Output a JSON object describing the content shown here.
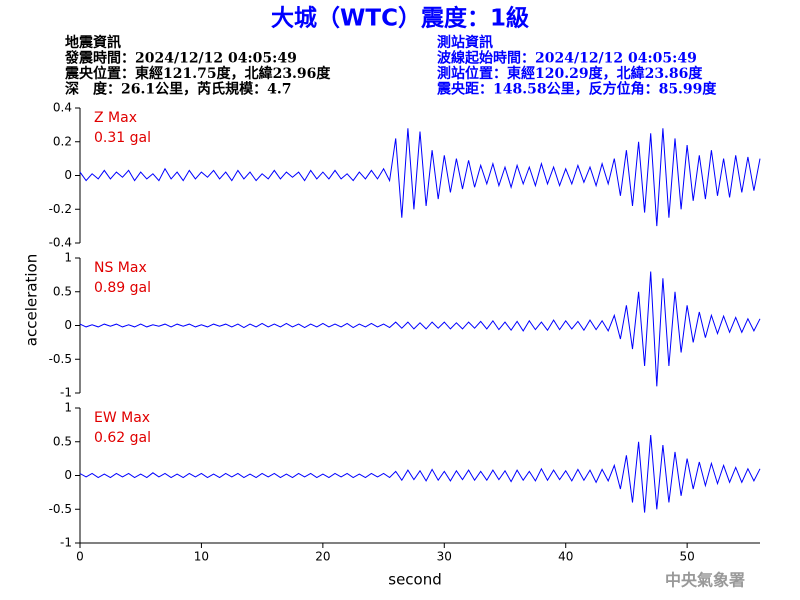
{
  "header": {
    "title": "大城（WTC）震度：1級",
    "left": [
      "地震資訊",
      "發震時間：2024/12/12 04:05:49",
      "震央位置：東經121.75度，北緯23.96度",
      "深　度：26.1公里，芮氏規模：4.7"
    ],
    "right": [
      "測站資訊",
      "波線起始時間：2024/12/12 04:05:49",
      "測站位置：東經120.29度，北緯23.86度",
      "震央距：148.58公里，反方位角：85.99度"
    ],
    "watermark": "中央氣象署"
  },
  "axes": {
    "xlabel": "second",
    "ylabel": "acceleration"
  },
  "chart_data": [
    {
      "type": "line",
      "name": "Z Max",
      "max_label": "0.31 gal",
      "color": "#0000ff",
      "x": [
        0,
        0.5,
        1,
        1.5,
        2,
        2.5,
        3,
        3.5,
        4,
        4.5,
        5,
        5.5,
        6,
        6.5,
        7,
        7.5,
        8,
        8.5,
        9,
        9.5,
        10,
        10.5,
        11,
        11.5,
        12,
        12.5,
        13,
        13.5,
        14,
        14.5,
        15,
        15.5,
        16,
        16.5,
        17,
        17.5,
        18,
        18.5,
        19,
        19.5,
        20,
        20.5,
        21,
        21.5,
        22,
        22.5,
        23,
        23.5,
        24,
        24.5,
        25,
        25.5,
        26,
        26.5,
        27,
        27.5,
        28,
        28.5,
        29,
        29.5,
        30,
        30.5,
        31,
        31.5,
        32,
        32.5,
        33,
        33.5,
        34,
        34.5,
        35,
        35.5,
        36,
        36.5,
        37,
        37.5,
        38,
        38.5,
        39,
        39.5,
        40,
        40.5,
        41,
        41.5,
        42,
        42.5,
        43,
        43.5,
        44,
        44.5,
        45,
        45.5,
        46,
        46.5,
        47,
        47.5,
        48,
        48.5,
        49,
        49.5,
        50,
        50.5,
        51,
        51.5,
        52,
        52.5,
        53,
        53.5,
        54,
        54.5,
        55,
        55.5,
        56
      ],
      "values": [
        0.02,
        -0.03,
        0.01,
        -0.02,
        0.03,
        -0.02,
        0.02,
        -0.01,
        0.03,
        -0.03,
        0.02,
        -0.02,
        0.01,
        -0.03,
        0.04,
        -0.02,
        0.02,
        -0.03,
        0.03,
        -0.02,
        0.02,
        -0.01,
        0.03,
        -0.02,
        0.02,
        -0.03,
        0.03,
        -0.02,
        0.02,
        -0.03,
        0.01,
        -0.02,
        0.03,
        -0.02,
        0.02,
        -0.01,
        0.02,
        -0.03,
        0.03,
        -0.02,
        0.02,
        -0.02,
        0.03,
        -0.02,
        0.01,
        -0.03,
        0.02,
        -0.02,
        0.03,
        -0.02,
        0.04,
        -0.03,
        0.22,
        -0.25,
        0.28,
        -0.2,
        0.26,
        -0.18,
        0.15,
        -0.14,
        0.12,
        -0.1,
        0.1,
        -0.08,
        0.09,
        -0.07,
        0.06,
        -0.05,
        0.07,
        -0.06,
        0.05,
        -0.07,
        0.06,
        -0.05,
        0.05,
        -0.06,
        0.07,
        -0.05,
        0.05,
        -0.06,
        0.04,
        -0.05,
        0.06,
        -0.04,
        0.05,
        -0.06,
        0.07,
        -0.05,
        0.1,
        -0.12,
        0.15,
        -0.18,
        0.2,
        -0.22,
        0.25,
        -0.3,
        0.28,
        -0.25,
        0.22,
        -0.2,
        0.18,
        -0.15,
        0.12,
        -0.14,
        0.15,
        -0.12,
        0.1,
        -0.13,
        0.12,
        -0.1,
        0.11,
        -0.09,
        0.1
      ],
      "xlim": [
        0,
        56
      ],
      "ylim": [
        -0.4,
        0.4
      ],
      "yticks": [
        0.4,
        0.2,
        0,
        -0.2,
        -0.4
      ]
    },
    {
      "type": "line",
      "name": "NS Max",
      "max_label": "0.89 gal",
      "color": "#0000ff",
      "x": [
        0,
        0.5,
        1,
        1.5,
        2,
        2.5,
        3,
        3.5,
        4,
        4.5,
        5,
        5.5,
        6,
        6.5,
        7,
        7.5,
        8,
        8.5,
        9,
        9.5,
        10,
        10.5,
        11,
        11.5,
        12,
        12.5,
        13,
        13.5,
        14,
        14.5,
        15,
        15.5,
        16,
        16.5,
        17,
        17.5,
        18,
        18.5,
        19,
        19.5,
        20,
        20.5,
        21,
        21.5,
        22,
        22.5,
        23,
        23.5,
        24,
        24.5,
        25,
        25.5,
        26,
        26.5,
        27,
        27.5,
        28,
        28.5,
        29,
        29.5,
        30,
        30.5,
        31,
        31.5,
        32,
        32.5,
        33,
        33.5,
        34,
        34.5,
        35,
        35.5,
        36,
        36.5,
        37,
        37.5,
        38,
        38.5,
        39,
        39.5,
        40,
        40.5,
        41,
        41.5,
        42,
        42.5,
        43,
        43.5,
        44,
        44.5,
        45,
        45.5,
        46,
        46.5,
        47,
        47.5,
        48,
        48.5,
        49,
        49.5,
        50,
        50.5,
        51,
        51.5,
        52,
        52.5,
        53,
        53.5,
        54,
        54.5,
        55,
        55.5,
        56
      ],
      "values": [
        0.02,
        -0.02,
        0.01,
        -0.02,
        0.02,
        -0.01,
        0.02,
        -0.02,
        0.01,
        -0.02,
        0.02,
        -0.02,
        0.01,
        -0.01,
        0.02,
        -0.02,
        0.02,
        -0.01,
        0.02,
        -0.02,
        0.01,
        -0.02,
        0.02,
        -0.01,
        0.02,
        -0.02,
        0.02,
        -0.03,
        0.02,
        -0.02,
        0.03,
        -0.02,
        0.02,
        -0.02,
        0.03,
        -0.02,
        0.02,
        -0.03,
        0.02,
        -0.02,
        0.03,
        -0.02,
        0.02,
        -0.02,
        0.03,
        -0.03,
        0.02,
        -0.02,
        0.03,
        -0.02,
        0.02,
        -0.03,
        0.05,
        -0.04,
        0.05,
        -0.05,
        0.04,
        -0.05,
        0.05,
        -0.04,
        0.05,
        -0.05,
        0.04,
        -0.05,
        0.05,
        -0.04,
        0.06,
        -0.05,
        0.07,
        -0.06,
        0.05,
        -0.07,
        0.06,
        -0.08,
        0.07,
        -0.06,
        0.05,
        -0.07,
        0.08,
        -0.06,
        0.07,
        -0.05,
        0.06,
        -0.07,
        0.08,
        -0.06,
        0.07,
        -0.08,
        0.15,
        -0.2,
        0.3,
        -0.35,
        0.5,
        -0.6,
        0.8,
        -0.9,
        0.7,
        -0.6,
        0.5,
        -0.4,
        0.3,
        -0.25,
        0.2,
        -0.18,
        0.15,
        -0.12,
        0.14,
        -0.1,
        0.12,
        -0.1,
        0.1,
        -0.08,
        0.1
      ],
      "xlim": [
        0,
        56
      ],
      "ylim": [
        -1,
        1
      ],
      "yticks": [
        1,
        0.5,
        0,
        -0.5,
        -1
      ]
    },
    {
      "type": "line",
      "name": "EW Max",
      "max_label": "0.62 gal",
      "color": "#0000ff",
      "x": [
        0,
        0.5,
        1,
        1.5,
        2,
        2.5,
        3,
        3.5,
        4,
        4.5,
        5,
        5.5,
        6,
        6.5,
        7,
        7.5,
        8,
        8.5,
        9,
        9.5,
        10,
        10.5,
        11,
        11.5,
        12,
        12.5,
        13,
        13.5,
        14,
        14.5,
        15,
        15.5,
        16,
        16.5,
        17,
        17.5,
        18,
        18.5,
        19,
        19.5,
        20,
        20.5,
        21,
        21.5,
        22,
        22.5,
        23,
        23.5,
        24,
        24.5,
        25,
        25.5,
        26,
        26.5,
        27,
        27.5,
        28,
        28.5,
        29,
        29.5,
        30,
        30.5,
        31,
        31.5,
        32,
        32.5,
        33,
        33.5,
        34,
        34.5,
        35,
        35.5,
        36,
        36.5,
        37,
        37.5,
        38,
        38.5,
        39,
        39.5,
        40,
        40.5,
        41,
        41.5,
        42,
        42.5,
        43,
        43.5,
        44,
        44.5,
        45,
        45.5,
        46,
        46.5,
        47,
        47.5,
        48,
        48.5,
        49,
        49.5,
        50,
        50.5,
        51,
        51.5,
        52,
        52.5,
        53,
        53.5,
        54,
        54.5,
        55,
        55.5,
        56
      ],
      "values": [
        0.03,
        -0.02,
        0.03,
        -0.03,
        0.02,
        -0.03,
        0.03,
        -0.02,
        0.03,
        -0.03,
        0.02,
        -0.03,
        0.04,
        -0.02,
        0.03,
        -0.03,
        0.02,
        -0.03,
        0.03,
        -0.02,
        0.03,
        -0.03,
        0.02,
        -0.03,
        0.03,
        -0.02,
        0.03,
        -0.03,
        0.02,
        -0.03,
        0.03,
        -0.02,
        0.03,
        -0.03,
        0.02,
        -0.03,
        0.03,
        -0.02,
        0.03,
        -0.03,
        0.02,
        -0.03,
        0.03,
        -0.02,
        0.03,
        -0.03,
        0.02,
        -0.03,
        0.03,
        -0.02,
        0.03,
        -0.03,
        0.06,
        -0.07,
        0.08,
        -0.06,
        0.07,
        -0.08,
        0.09,
        -0.07,
        0.06,
        -0.08,
        0.07,
        -0.06,
        0.08,
        -0.07,
        0.06,
        -0.07,
        0.08,
        -0.06,
        0.07,
        -0.09,
        0.08,
        -0.07,
        0.06,
        -0.08,
        0.1,
        -0.07,
        0.08,
        -0.06,
        0.07,
        -0.08,
        0.09,
        -0.07,
        0.08,
        -0.1,
        0.09,
        -0.08,
        0.15,
        -0.2,
        0.3,
        -0.4,
        0.5,
        -0.55,
        0.6,
        -0.5,
        0.45,
        -0.4,
        0.35,
        -0.3,
        0.25,
        -0.2,
        0.2,
        -0.15,
        0.18,
        -0.12,
        0.15,
        -0.1,
        0.12,
        -0.1,
        0.1,
        -0.08,
        0.1
      ],
      "xlim": [
        0,
        56
      ],
      "ylim": [
        -1,
        1
      ],
      "yticks": [
        1,
        0.5,
        0,
        -0.5,
        -1
      ],
      "xticks": [
        0,
        10,
        20,
        30,
        40,
        50
      ]
    }
  ]
}
